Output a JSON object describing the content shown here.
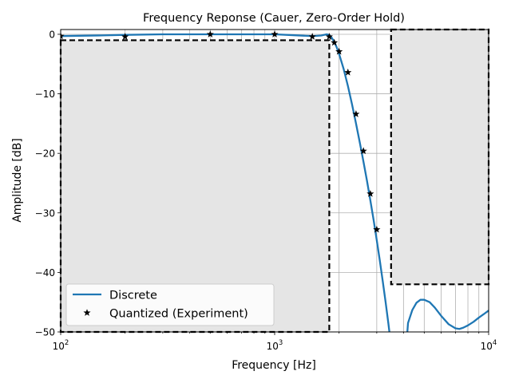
{
  "chart_data": {
    "type": "line",
    "title": "Frequency Reponse (Cauer, Zero-Order Hold)",
    "xlabel": "Frequency [Hz]",
    "ylabel": "Amplitude [dB]",
    "xscale": "log",
    "xlim": [
      100,
      10000
    ],
    "ylim": [
      -50,
      0.8
    ],
    "grid": true,
    "legend_position": "lower-left",
    "x_ticks": [
      {
        "value": 100,
        "base": "10",
        "exp": "2"
      },
      {
        "value": 1000,
        "base": "10",
        "exp": "3"
      },
      {
        "value": 10000,
        "base": "10",
        "exp": "4"
      }
    ],
    "y_ticks": [
      {
        "value": 0,
        "label": "0"
      },
      {
        "value": -10,
        "label": "−10"
      },
      {
        "value": -20,
        "label": "−20"
      },
      {
        "value": -30,
        "label": "−30"
      },
      {
        "value": -40,
        "label": "−40"
      },
      {
        "value": -50,
        "label": "−50"
      }
    ],
    "series": [
      {
        "name": "Discrete",
        "style": "line",
        "color": "#1f77b4",
        "segments": [
          {
            "x": [
              100,
              150,
              200,
              300,
              500,
              700,
              1000,
              1300,
              1500,
              1650,
              1750,
              1800,
              1850,
              1900,
              1950,
              2000,
              2100,
              2200,
              2300,
              2400,
              2500,
              2600,
              2700,
              2800,
              2900,
              3000,
              3100,
              3200,
              3300,
              3400,
              3500,
              3600
            ],
            "y": [
              -0.3,
              -0.2,
              -0.1,
              0.0,
              0.0,
              0.0,
              0.0,
              -0.2,
              -0.3,
              -0.2,
              0.0,
              -0.1,
              -0.6,
              -1.3,
              -2.2,
              -3.3,
              -5.8,
              -8.7,
              -11.8,
              -15.0,
              -18.2,
              -21.4,
              -24.6,
              -27.9,
              -31.2,
              -34.6,
              -38.0,
              -41.5,
              -45.0,
              -48.6,
              -52.3,
              -56.0
            ]
          },
          {
            "x": [
              4050,
              4200,
              4400,
              4600,
              4800,
              5000,
              5300,
              5600,
              6000,
              6500,
              7000,
              7300,
              7600,
              8000,
              8500,
              9000,
              9500,
              10000
            ],
            "y": [
              -56.0,
              -48.5,
              -46.3,
              -45.1,
              -44.6,
              -44.6,
              -45.0,
              -45.9,
              -47.3,
              -48.7,
              -49.4,
              -49.5,
              -49.3,
              -48.9,
              -48.3,
              -47.6,
              -47.0,
              -46.4
            ]
          }
        ]
      },
      {
        "name": "Quantized (Experiment)",
        "style": "star-markers",
        "color": "#000000",
        "x": [
          100,
          200,
          500,
          1000,
          1500,
          1800,
          1900,
          2000,
          2200,
          2400,
          2600,
          2800,
          3000
        ],
        "y": [
          -0.3,
          -0.4,
          0.0,
          0.0,
          -0.4,
          -0.4,
          -1.4,
          -2.9,
          -6.4,
          -13.4,
          -19.6,
          -26.8,
          -32.8
        ]
      }
    ],
    "regions": [
      {
        "name": "passband",
        "x": [
          100,
          1800
        ],
        "y_top": -1.0,
        "y_bottom": -50,
        "fill": "#e5e5e5",
        "edge": "dashed"
      },
      {
        "name": "stopband",
        "x": [
          3500,
          10000
        ],
        "y_top": 0.8,
        "y_bottom": -42,
        "fill": "#e5e5e5",
        "edge": "dashed"
      }
    ]
  }
}
